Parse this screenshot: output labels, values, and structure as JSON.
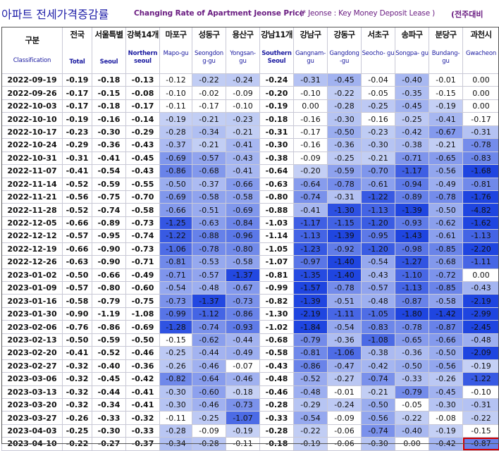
{
  "title": {
    "ko": "아파트 전세가격증감률",
    "en": "Changing Rate of Apartment Jeonse Price",
    "note": "(* Jeonse : Key Money Deposit Lease )",
    "right": "(전주대비"
  },
  "columns": [
    {
      "ko": "구분",
      "en": "Classification"
    },
    {
      "ko": "전국",
      "en": "Total"
    },
    {
      "ko": "서울특별",
      "en": "Seoul"
    },
    {
      "ko": "강북14개",
      "en": "Northern seoul"
    },
    {
      "ko": "마포구",
      "en": "Mapo-gu"
    },
    {
      "ko": "성동구",
      "en": "Seongdon g-gu"
    },
    {
      "ko": "용산구",
      "en": "Yongsan- gu"
    },
    {
      "ko": "강남11개",
      "en": "Southern Seoul"
    },
    {
      "ko": "강남구",
      "en": "Gangnam- gu"
    },
    {
      "ko": "강동구",
      "en": "Gangdong -gu"
    },
    {
      "ko": "서초구",
      "en": "Seocho- gu"
    },
    {
      "ko": "송파구",
      "en": "Songpa- gu"
    },
    {
      "ko": "분당구",
      "en": "Bundang- gu"
    },
    {
      "ko": "과천시",
      "en": "Gwacheon"
    }
  ],
  "rows": [
    {
      "date": "2022-09-19",
      "values": [
        "-0.19",
        "-0.18",
        "-0.13",
        "-0.12",
        "-0.22",
        "-0.24",
        "-0.24",
        "-0.31",
        "-0.45",
        "-0.04",
        "-0.40",
        "-0.01",
        "0.00"
      ]
    },
    {
      "date": "2022-09-26",
      "values": [
        "-0.17",
        "-0.15",
        "-0.08",
        "-0.10",
        "-0.02",
        "-0.09",
        "-0.20",
        "-0.10",
        "-0.22",
        "-0.05",
        "-0.35",
        "-0.15",
        "0.00"
      ]
    },
    {
      "date": "2022-10-03",
      "values": [
        "-0.17",
        "-0.18",
        "-0.17",
        "-0.11",
        "-0.17",
        "-0.10",
        "-0.19",
        "0.00",
        "-0.28",
        "-0.25",
        "-0.45",
        "-0.19",
        "0.00"
      ]
    },
    {
      "date": "2022-10-10",
      "values": [
        "-0.19",
        "-0.16",
        "-0.14",
        "-0.19",
        "-0.21",
        "-0.23",
        "-0.18",
        "-0.16",
        "-0.30",
        "-0.16",
        "-0.25",
        "-0.41",
        "-0.17"
      ]
    },
    {
      "date": "2022-10-17",
      "values": [
        "-0.23",
        "-0.30",
        "-0.29",
        "-0.28",
        "-0.34",
        "-0.21",
        "-0.31",
        "-0.17",
        "-0.50",
        "-0.23",
        "-0.42",
        "-0.67",
        "-0.31"
      ]
    },
    {
      "date": "2022-10-24",
      "values": [
        "-0.29",
        "-0.36",
        "-0.43",
        "-0.37",
        "-0.21",
        "-0.41",
        "-0.30",
        "-0.16",
        "-0.36",
        "-0.30",
        "-0.38",
        "-0.21",
        "-0.78"
      ]
    },
    {
      "date": "2022-10-31",
      "values": [
        "-0.31",
        "-0.41",
        "-0.45",
        "-0.69",
        "-0.57",
        "-0.43",
        "-0.38",
        "-0.09",
        "-0.25",
        "-0.21",
        "-0.71",
        "-0.65",
        "-0.83"
      ]
    },
    {
      "date": "2022-11-07",
      "values": [
        "-0.41",
        "-0.54",
        "-0.43",
        "-0.86",
        "-0.68",
        "-0.41",
        "-0.64",
        "-0.20",
        "-0.59",
        "-0.70",
        "-1.17",
        "-0.56",
        "-1.68"
      ]
    },
    {
      "date": "2022-11-14",
      "values": [
        "-0.52",
        "-0.59",
        "-0.55",
        "-0.50",
        "-0.37",
        "-0.66",
        "-0.63",
        "-0.64",
        "-0.78",
        "-0.61",
        "-0.94",
        "-0.49",
        "-0.81"
      ]
    },
    {
      "date": "2022-11-21",
      "values": [
        "-0.56",
        "-0.75",
        "-0.70",
        "-0.69",
        "-0.58",
        "-0.58",
        "-0.80",
        "-0.74",
        "-0.31",
        "-1.22",
        "-0.89",
        "-0.78",
        "-1.76"
      ]
    },
    {
      "date": "2022-11-28",
      "values": [
        "-0.52",
        "-0.74",
        "-0.58",
        "-0.66",
        "-0.51",
        "-0.69",
        "-0.88",
        "-0.41",
        "-1.30",
        "-1.13",
        "-1.39",
        "-0.50",
        "-4.82"
      ]
    },
    {
      "date": "2022-12-05",
      "values": [
        "-0.66",
        "-0.89",
        "-0.73",
        "-1.25",
        "-0.63",
        "-0.84",
        "-1.03",
        "-1.17",
        "-1.15",
        "-1.20",
        "-0.93",
        "-0.62",
        "-1.62"
      ]
    },
    {
      "date": "2022-12-12",
      "values": [
        "-0.57",
        "-0.95",
        "-0.74",
        "-1.22",
        "-0.88",
        "-0.96",
        "-1.14",
        "-1.13",
        "-1.39",
        "-0.95",
        "-1.43",
        "-0.61",
        "-1.13"
      ]
    },
    {
      "date": "2022-12-19",
      "values": [
        "-0.66",
        "-0.90",
        "-0.73",
        "-1.06",
        "-0.78",
        "-0.80",
        "-1.05",
        "-1.23",
        "-0.92",
        "-1.20",
        "-0.98",
        "-0.85",
        "-2.20"
      ]
    },
    {
      "date": "2022-12-26",
      "values": [
        "-0.63",
        "-0.90",
        "-0.71",
        "-0.81",
        "-0.53",
        "-0.58",
        "-1.07",
        "-0.97",
        "-1.40",
        "-0.54",
        "-1.27",
        "-0.68",
        "-1.11"
      ]
    },
    {
      "date": "2023-01-02",
      "values": [
        "-0.50",
        "-0.66",
        "-0.49",
        "-0.71",
        "-0.57",
        "-1.37",
        "-0.81",
        "-1.35",
        "-1.40",
        "-0.43",
        "-1.10",
        "-0.72",
        "0.00"
      ]
    },
    {
      "date": "2023-01-09",
      "values": [
        "-0.57",
        "-0.80",
        "-0.60",
        "-0.54",
        "-0.48",
        "-0.67",
        "-0.99",
        "-1.57",
        "-0.78",
        "-0.57",
        "-1.13",
        "-0.85",
        "-0.43"
      ]
    },
    {
      "date": "2023-01-16",
      "values": [
        "-0.58",
        "-0.79",
        "-0.75",
        "-0.73",
        "-1.37",
        "-0.73",
        "-0.82",
        "-1.39",
        "-0.51",
        "-0.48",
        "-0.87",
        "-0.58",
        "-2.19"
      ]
    },
    {
      "date": "2023-01-30",
      "values": [
        "-0.90",
        "-1.19",
        "-1.08",
        "-0.99",
        "-1.12",
        "-0.86",
        "-1.30",
        "-2.19",
        "-1.11",
        "-1.05",
        "-1.80",
        "-1.42",
        "-2.99"
      ]
    },
    {
      "date": "2023-02-06",
      "values": [
        "-0.76",
        "-0.86",
        "-0.69",
        "-1.28",
        "-0.74",
        "-0.93",
        "-1.02",
        "-1.84",
        "-0.54",
        "-0.83",
        "-0.78",
        "-0.87",
        "-2.45"
      ]
    },
    {
      "date": "2023-02-13",
      "values": [
        "-0.50",
        "-0.59",
        "-0.50",
        "-0.15",
        "-0.62",
        "-0.44",
        "-0.68",
        "-0.79",
        "-0.36",
        "-1.08",
        "-0.65",
        "-0.66",
        "-0.48"
      ]
    },
    {
      "date": "2023-02-20",
      "values": [
        "-0.41",
        "-0.52",
        "-0.46",
        "-0.25",
        "-0.44",
        "-0.49",
        "-0.58",
        "-0.81",
        "-1.06",
        "-0.38",
        "-0.36",
        "-0.50",
        "-2.09"
      ]
    },
    {
      "date": "2023-02-27",
      "values": [
        "-0.32",
        "-0.40",
        "-0.36",
        "-0.26",
        "-0.46",
        "-0.07",
        "-0.43",
        "-0.86",
        "-0.47",
        "-0.42",
        "-0.50",
        "-0.56",
        "-0.19"
      ]
    },
    {
      "date": "2023-03-06",
      "values": [
        "-0.32",
        "-0.45",
        "-0.42",
        "-0.82",
        "-0.64",
        "-0.46",
        "-0.48",
        "-0.52",
        "-0.27",
        "-0.74",
        "-0.33",
        "-0.26",
        "-1.22"
      ]
    },
    {
      "date": "2023-03-13",
      "values": [
        "-0.32",
        "-0.44",
        "-0.41",
        "-0.30",
        "-0.60",
        "-0.18",
        "-0.46",
        "-0.48",
        "-0.01",
        "-0.21",
        "-0.79",
        "-0.45",
        "-0.10"
      ]
    },
    {
      "date": "2023-03-20",
      "values": [
        "-0.32",
        "-0.34",
        "-0.41",
        "-0.30",
        "-0.46",
        "-0.73",
        "-0.28",
        "-0.29",
        "-0.24",
        "-0.50",
        "-0.05",
        "-0.30",
        "-0.31"
      ]
    },
    {
      "date": "2023-03-27",
      "values": [
        "-0.26",
        "-0.33",
        "-0.32",
        "-0.11",
        "-0.25",
        "-1.07",
        "-0.33",
        "-0.54",
        "-0.09",
        "-0.56",
        "-0.22",
        "-0.08",
        "-0.22"
      ]
    },
    {
      "date": "2023-04-03",
      "values": [
        "-0.25",
        "-0.30",
        "-0.33",
        "-0.28",
        "-0.09",
        "-0.19",
        "-0.28",
        "-0.22",
        "-0.06",
        "-0.74",
        "-0.40",
        "-0.19",
        "-0.15"
      ]
    },
    {
      "date": "2023-04-10",
      "values": [
        "-0.22",
        "-0.27",
        "-0.37",
        "-0.34",
        "-0.28",
        "-0.11",
        "-0.18",
        "-0.19",
        "-0.06",
        "-0.30",
        "0.00",
        "-0.42",
        "-0.87"
      ]
    }
  ],
  "colors": {
    "title_ko": "#1f1fa8",
    "title_en": "#6b1e82",
    "heat_light": "#dfe6f8",
    "heat_dark": "#1f45e0",
    "highlight_border": "#d00000"
  }
}
